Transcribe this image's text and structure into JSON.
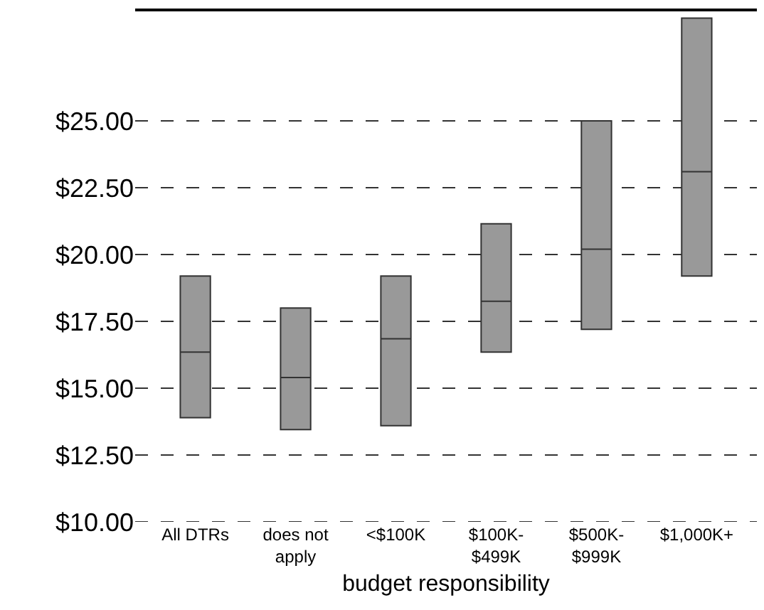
{
  "chart_data": {
    "type": "box",
    "xlabel": "budget responsibility",
    "categories": [
      "All DTRs",
      "does not\napply",
      "<$100K",
      "$100K-\n$499K",
      "$500K-\n$999K",
      "$1,000K+"
    ],
    "boxes": [
      {
        "low": 13.9,
        "q1": 13.9,
        "median": 16.35,
        "q3": 19.2,
        "high": 19.2
      },
      {
        "low": 13.45,
        "q1": 13.45,
        "median": 15.4,
        "q3": 18.0,
        "high": 18.0
      },
      {
        "low": 13.6,
        "q1": 13.6,
        "median": 16.85,
        "q3": 19.2,
        "high": 19.2
      },
      {
        "low": 16.35,
        "q1": 16.35,
        "median": 18.25,
        "q3": 21.15,
        "high": 21.15
      },
      {
        "low": 17.2,
        "q1": 17.2,
        "median": 20.2,
        "q3": 25.0,
        "high": 25.0
      },
      {
        "low": 19.2,
        "q1": 19.2,
        "median": 23.1,
        "q3": 28.85,
        "high": 28.85
      }
    ],
    "color": "#999999",
    "ylim": [
      10,
      29.1
    ],
    "yticks": [
      {
        "value": 10,
        "label": "$10.00"
      },
      {
        "value": 12.5,
        "label": "$12.50"
      },
      {
        "value": 15,
        "label": "$15.00"
      },
      {
        "value": 17.5,
        "label": "$17.50"
      },
      {
        "value": 20,
        "label": "$20.00"
      },
      {
        "value": 22.5,
        "label": "$22.50"
      },
      {
        "value": 25,
        "label": "$25.00"
      }
    ],
    "grid": "y"
  }
}
